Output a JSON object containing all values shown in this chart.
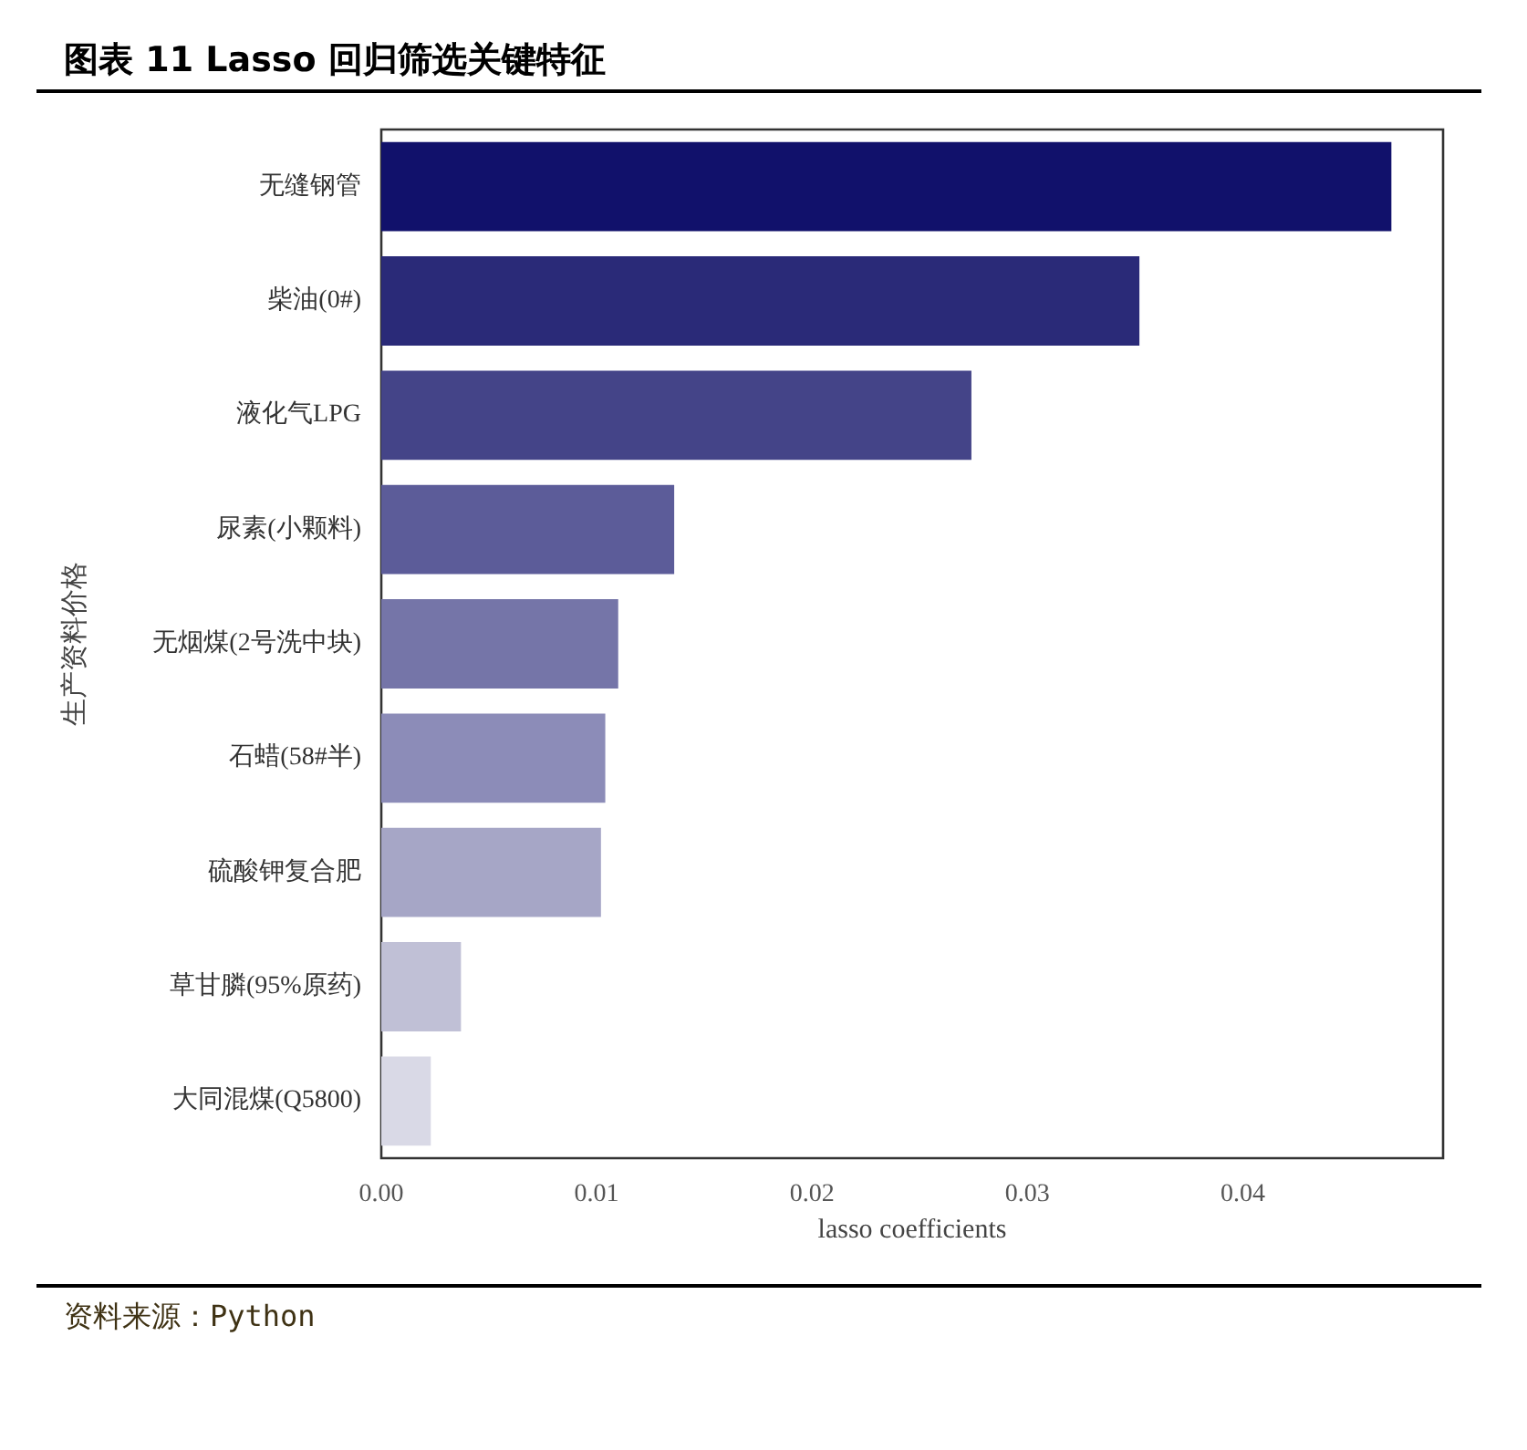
{
  "chart_data": {
    "type": "bar",
    "orientation": "horizontal",
    "title": "图表 11 Lasso 回归筛选关键特征",
    "xlabel": "lasso coefficients",
    "ylabel": "生产资料价格",
    "annotations": [
      "资料来源：Python"
    ],
    "categories": [
      "无缝钢管",
      "柴油(0#)",
      "液化气LPG",
      "尿素(小颗料)",
      "无烟煤(2号洗中块)",
      "石蜡(58#半)",
      "硫酸钾复合肥",
      "草甘膦(95%原药)",
      "大同混煤(Q5800)"
    ],
    "values": [
      0.0469,
      0.0352,
      0.0274,
      0.0136,
      0.011,
      0.0104,
      0.0102,
      0.0037,
      0.0023
    ],
    "colors": [
      "#11116b",
      "#2a2a78",
      "#444488",
      "#5c5c99",
      "#7575a8",
      "#8c8cb8",
      "#a6a6c6",
      "#c0c0d6",
      "#d9d9e6"
    ],
    "xlim": [
      0,
      0.0493
    ],
    "xticks": [
      {
        "value": 0,
        "label": "0.00"
      },
      0.01,
      0.02,
      0.03,
      0.04
    ],
    "grid": false
  }
}
